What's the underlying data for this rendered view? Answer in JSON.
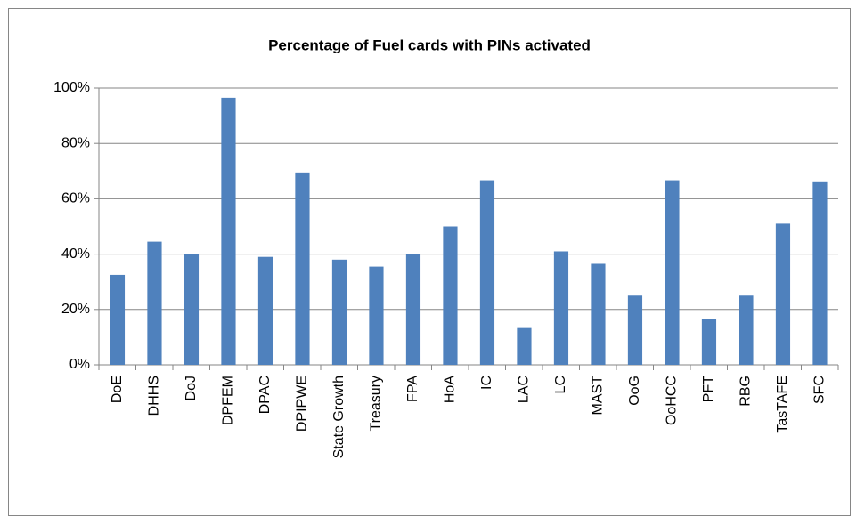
{
  "chart_data": {
    "type": "bar",
    "title": "Percentage of Fuel cards with PINs activated",
    "categories": [
      "DoE",
      "DHHS",
      "DoJ",
      "DPFEM",
      "DPAC",
      "DPIPWE",
      "State Growth",
      "Treasury",
      "FPA",
      "HoA",
      "IC",
      "LAC",
      "LC",
      "MAST",
      "OoG",
      "OoHCC",
      "PFT",
      "RBG",
      "TasTAFE",
      "SFC"
    ],
    "values": [
      32.5,
      44.5,
      40,
      96.5,
      39,
      69.5,
      38,
      35.5,
      40,
      50,
      66.7,
      13.3,
      41,
      36.5,
      25,
      66.7,
      16.7,
      25,
      51,
      66.3
    ],
    "color": "#4f81bd",
    "ylim": [
      0,
      100
    ],
    "yticks": [
      {
        "value": 0,
        "label": "0%"
      },
      {
        "value": 20,
        "label": "20%"
      },
      {
        "value": 40,
        "label": "40%"
      },
      {
        "value": 60,
        "label": "60%"
      },
      {
        "value": 80,
        "label": "80%"
      },
      {
        "value": 100,
        "label": "100%"
      }
    ],
    "grid": true
  }
}
